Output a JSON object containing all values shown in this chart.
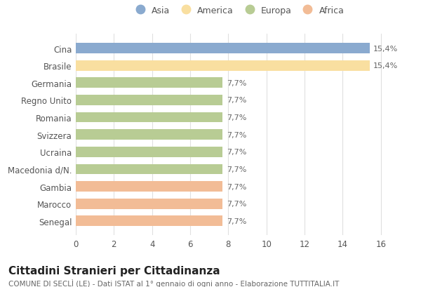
{
  "categories": [
    "Senegal",
    "Marocco",
    "Gambia",
    "Macedonia d/N.",
    "Ucraina",
    "Svizzera",
    "Romania",
    "Regno Unito",
    "Germania",
    "Brasile",
    "Cina"
  ],
  "values": [
    7.7,
    7.7,
    7.7,
    7.7,
    7.7,
    7.7,
    7.7,
    7.7,
    7.7,
    15.4,
    15.4
  ],
  "colors": [
    "#f2bc96",
    "#f2bc96",
    "#f2bc96",
    "#b8cc94",
    "#b8cc94",
    "#b8cc94",
    "#b8cc94",
    "#b8cc94",
    "#b8cc94",
    "#f9dfa0",
    "#8aaacf"
  ],
  "labels": [
    "7,7%",
    "7,7%",
    "7,7%",
    "7,7%",
    "7,7%",
    "7,7%",
    "7,7%",
    "7,7%",
    "7,7%",
    "15,4%",
    "15,4%"
  ],
  "legend_labels": [
    "Asia",
    "America",
    "Europa",
    "Africa"
  ],
  "legend_colors": [
    "#8aaacf",
    "#f9dfa0",
    "#b8cc94",
    "#f2bc96"
  ],
  "title": "Cittadini Stranieri per Cittadinanza",
  "subtitle": "COMUNE DI SECLÌ (LE) - Dati ISTAT al 1° gennaio di ogni anno - Elaborazione TUTTITALIA.IT",
  "xlim": [
    0,
    17
  ],
  "xticks": [
    0,
    2,
    4,
    6,
    8,
    10,
    12,
    14,
    16
  ],
  "background_color": "#ffffff",
  "grid_color": "#e0e0e0",
  "title_fontsize": 11,
  "subtitle_fontsize": 7.5,
  "label_fontsize": 8,
  "tick_fontsize": 8.5,
  "legend_fontsize": 9
}
